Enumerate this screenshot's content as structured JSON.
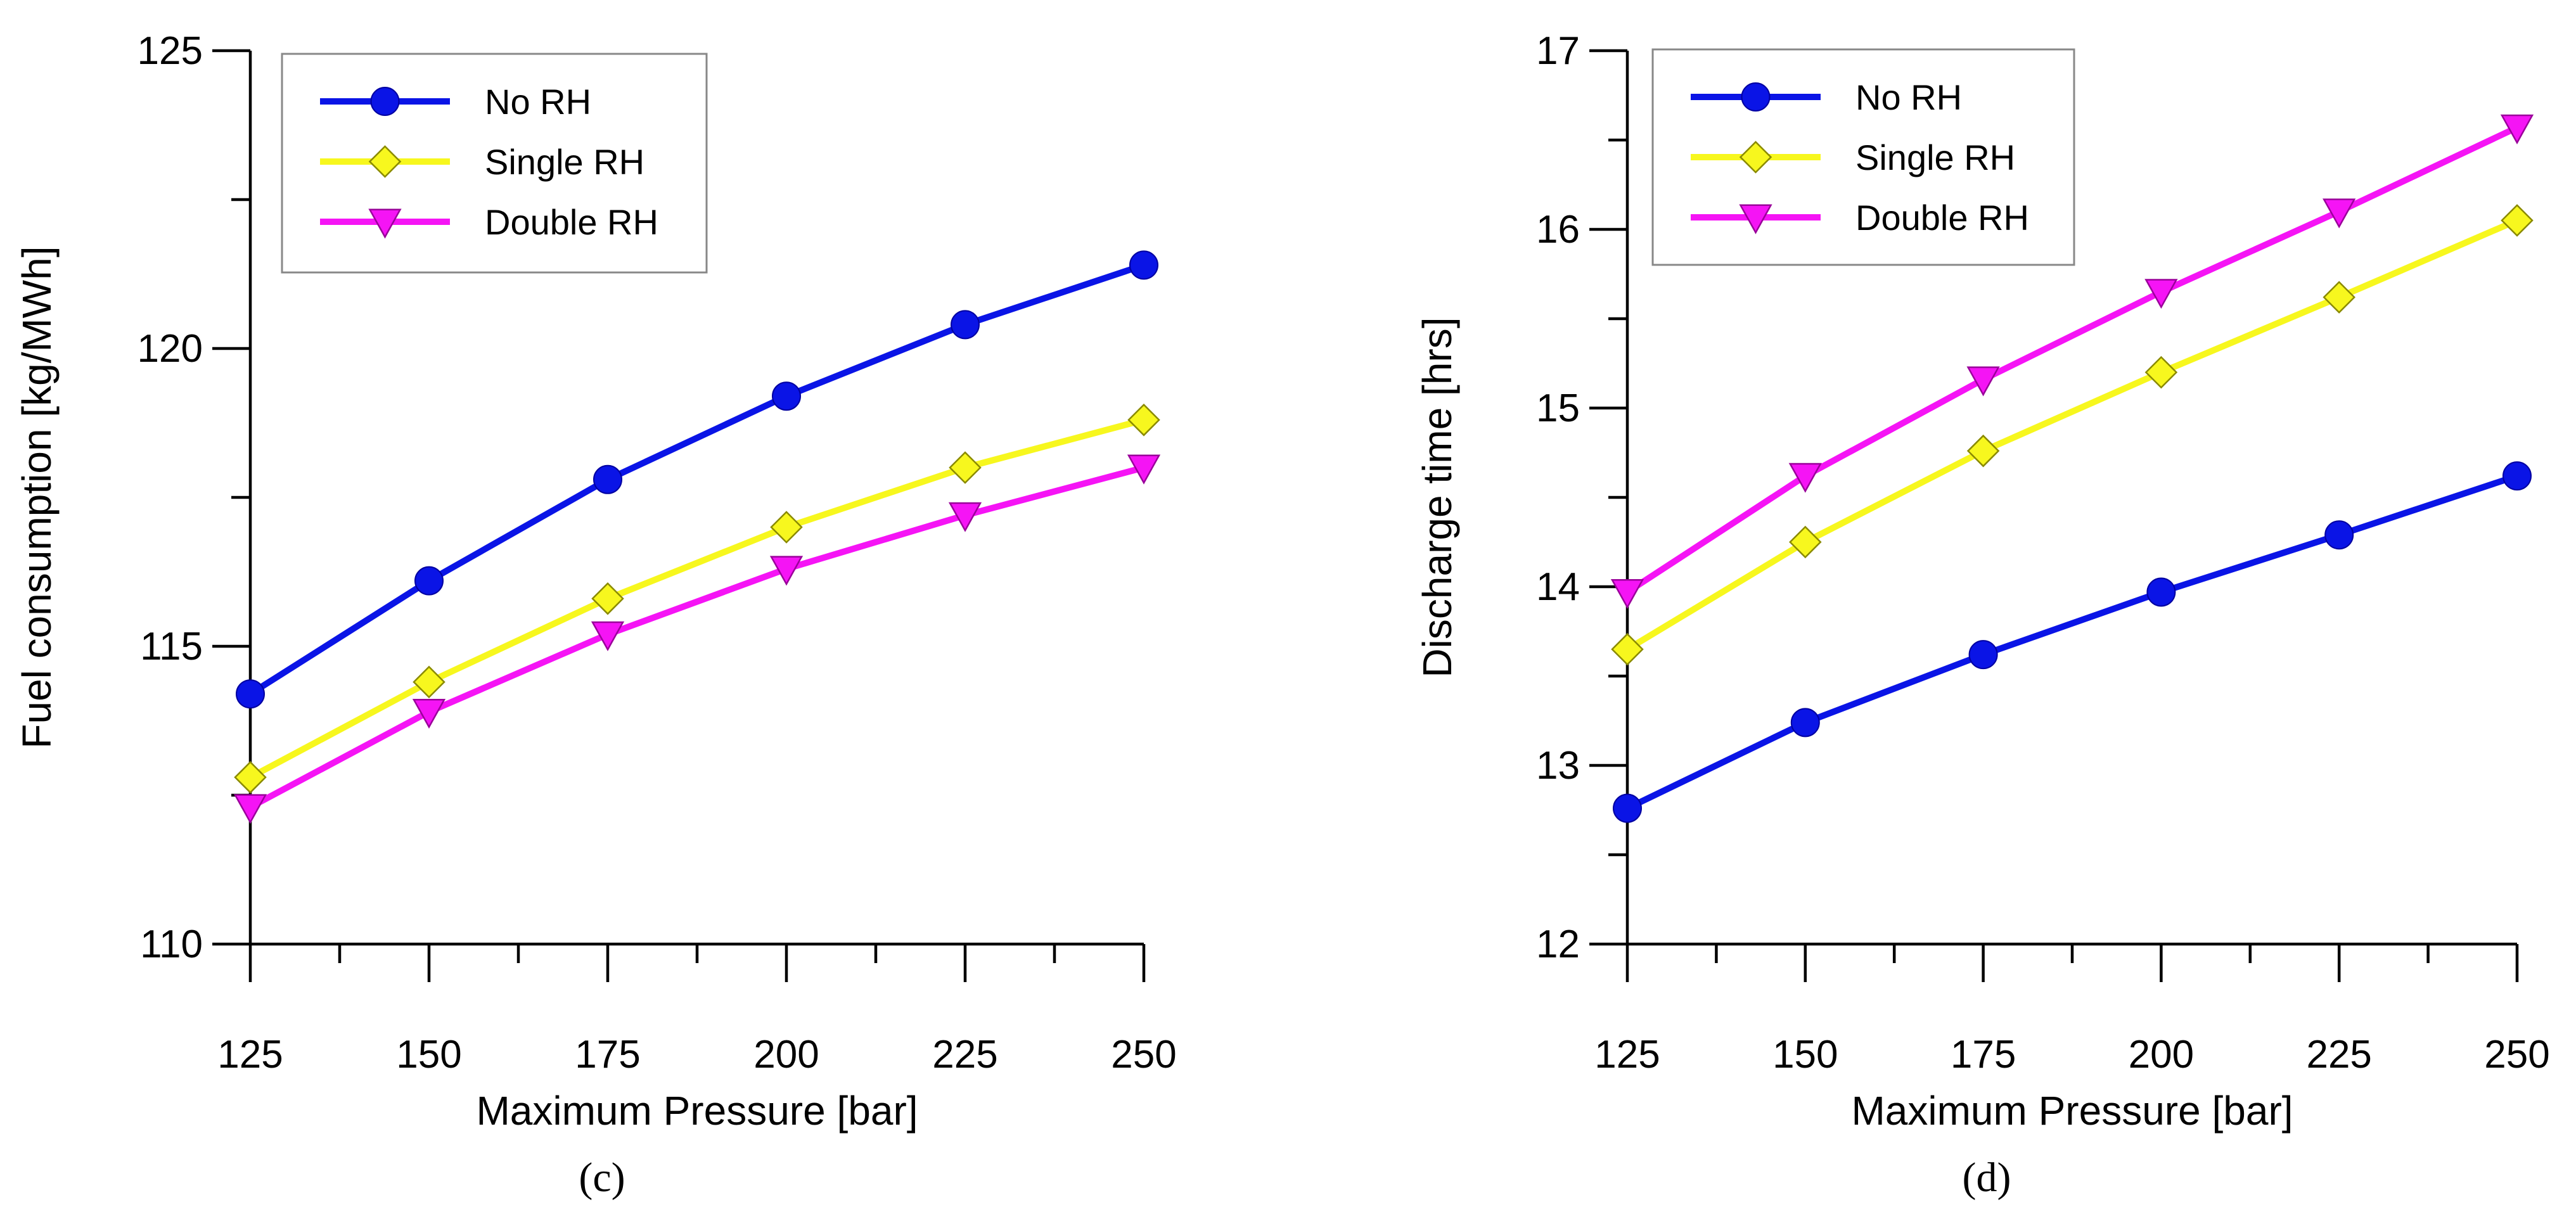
{
  "chart_data": [
    {
      "type": "line",
      "panel_label": "(c)",
      "title": "",
      "xlabel": "Maximum Pressure [bar]",
      "ylabel": "Fuel consumption [kg/MWh]",
      "x": [
        125,
        150,
        175,
        200,
        225,
        250
      ],
      "xlim": [
        125,
        250
      ],
      "ylim": [
        110,
        125
      ],
      "x_ticks": [
        125,
        150,
        175,
        200,
        225,
        250
      ],
      "x_tick_labels": [
        "125",
        "150",
        "175",
        "200",
        "225",
        "250"
      ],
      "y_ticks": [
        110,
        115,
        120,
        125
      ],
      "y_tick_labels": [
        "110",
        "115",
        "120",
        "125"
      ],
      "grid": false,
      "legend_position": "top-left",
      "series": [
        {
          "name": "No RH",
          "marker": "circle",
          "color": "#0a14e6",
          "values": [
            114.2,
            116.1,
            117.8,
            119.2,
            120.4,
            121.4
          ]
        },
        {
          "name": "Single RH",
          "marker": "diamond",
          "color": "#f7f71e",
          "values": [
            112.8,
            114.4,
            115.8,
            117.0,
            118.0,
            118.8
          ]
        },
        {
          "name": "Double RH",
          "marker": "triangle-down",
          "color": "#f514f5",
          "values": [
            112.3,
            113.9,
            115.2,
            116.3,
            117.2,
            118.0
          ]
        }
      ]
    },
    {
      "type": "line",
      "panel_label": "(d)",
      "title": "",
      "xlabel": "Maximum Pressure [bar]",
      "ylabel": "Discharge time [hrs]",
      "x": [
        125,
        150,
        175,
        200,
        225,
        250
      ],
      "xlim": [
        125,
        250
      ],
      "ylim": [
        12,
        17
      ],
      "x_ticks": [
        125,
        150,
        175,
        200,
        225,
        250
      ],
      "x_tick_labels": [
        "125",
        "150",
        "175",
        "200",
        "225",
        "250"
      ],
      "y_ticks": [
        12,
        13,
        14,
        15,
        16,
        17
      ],
      "y_tick_labels": [
        "12",
        "13",
        "14",
        "15",
        "16",
        "17"
      ],
      "grid": false,
      "legend_position": "top-left",
      "series": [
        {
          "name": "No RH",
          "marker": "circle",
          "color": "#0a14e6",
          "values": [
            12.76,
            13.24,
            13.62,
            13.97,
            14.29,
            14.62
          ]
        },
        {
          "name": "Single RH",
          "marker": "diamond",
          "color": "#f7f71e",
          "values": [
            13.65,
            14.25,
            14.76,
            15.2,
            15.62,
            16.05
          ]
        },
        {
          "name": "Double RH",
          "marker": "triangle-down",
          "color": "#f514f5",
          "values": [
            13.97,
            14.62,
            15.16,
            15.65,
            16.1,
            16.57
          ]
        }
      ]
    }
  ]
}
